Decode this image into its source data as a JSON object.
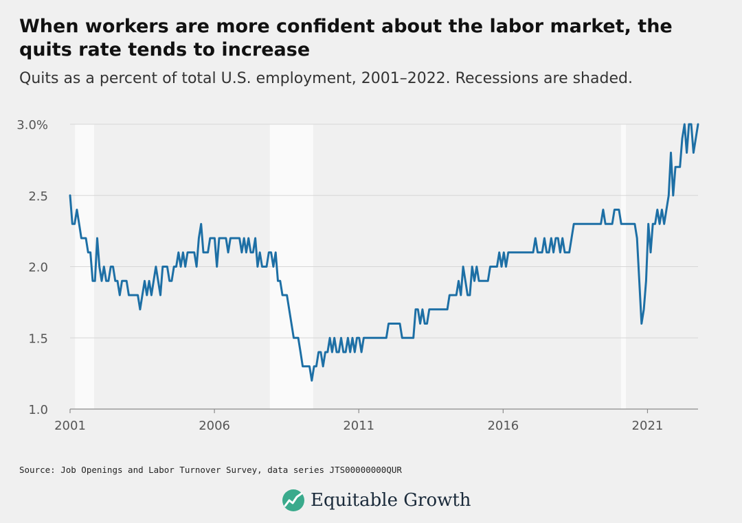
{
  "header": {
    "title": "When workers are more confident about the labor market, the quits rate tends to increase",
    "subtitle": "Quits as a percent of total U.S. employment, 2001–2022. Recessions are shaded."
  },
  "footer": {
    "source": "Source: Job Openings and Labor Turnover Survey, data series JTS00000000QUR",
    "brand": "Equitable Growth"
  },
  "colors": {
    "background": "#f0f0f0",
    "line": "#1d6fa5",
    "recession": "#fafafa",
    "grid": "#d6d6d6",
    "logo": "#3aaa8c"
  },
  "icons": {
    "logo": "equitable-growth-logo-icon"
  },
  "chart_data": {
    "type": "line",
    "title": "When workers are more confident about the labor market, the quits rate tends to increase",
    "subtitle": "Quits as a percent of total U.S. employment, 2001–2022. Recessions are shaded.",
    "xlabel": "",
    "ylabel": "",
    "xlim": [
      2001.0,
      2022.75
    ],
    "ylim": [
      1.0,
      3.0
    ],
    "x_ticks": [
      2001,
      2006,
      2011,
      2016,
      2021
    ],
    "x_tick_labels": [
      "2001",
      "2006",
      "2011",
      "2016",
      "2021"
    ],
    "y_ticks": [
      1.0,
      1.5,
      2.0,
      2.5,
      3.0
    ],
    "y_tick_labels": [
      "1.0",
      "1.5",
      "2.0",
      "2.5",
      "3.0%"
    ],
    "grid": "horizontal",
    "recessions": [
      {
        "start": 2001.17,
        "end": 2001.83
      },
      {
        "start": 2007.92,
        "end": 2009.42
      },
      {
        "start": 2020.08,
        "end": 2020.25
      }
    ],
    "series": [
      {
        "values": [
          2.5,
          2.3,
          2.3,
          2.4,
          2.3,
          2.2,
          2.2,
          2.2,
          2.1,
          2.1,
          1.9,
          1.9,
          2.2,
          2.0,
          1.9,
          2.0,
          1.9,
          1.9,
          2.0,
          2.0,
          1.9,
          1.9,
          1.8,
          1.9,
          1.9,
          1.9,
          1.8,
          1.8,
          1.8,
          1.8,
          1.8,
          1.7,
          1.8,
          1.9,
          1.8,
          1.9,
          1.8,
          1.9,
          2.0,
          1.9,
          1.8,
          2.0,
          2.0,
          2.0,
          1.9,
          1.9,
          2.0,
          2.0,
          2.1,
          2.0,
          2.1,
          2.0,
          2.1,
          2.1,
          2.1,
          2.1,
          2.0,
          2.2,
          2.3,
          2.1,
          2.1,
          2.1,
          2.2,
          2.2,
          2.2,
          2.0,
          2.2,
          2.2,
          2.2,
          2.2,
          2.1,
          2.2,
          2.2,
          2.2,
          2.2,
          2.2,
          2.1,
          2.2,
          2.1,
          2.2,
          2.1,
          2.1,
          2.2,
          2.0,
          2.1,
          2.0,
          2.0,
          2.0,
          2.1,
          2.1,
          2.0,
          2.1,
          1.9,
          1.9,
          1.8,
          1.8,
          1.8,
          1.7,
          1.6,
          1.5,
          1.5,
          1.5,
          1.4,
          1.3,
          1.3,
          1.3,
          1.3,
          1.2,
          1.3,
          1.3,
          1.4,
          1.4,
          1.3,
          1.4,
          1.4,
          1.5,
          1.4,
          1.5,
          1.4,
          1.4,
          1.5,
          1.4,
          1.4,
          1.5,
          1.4,
          1.5,
          1.4,
          1.5,
          1.5,
          1.4,
          1.5,
          1.5,
          1.5,
          1.5,
          1.5,
          1.5,
          1.5,
          1.5,
          1.5,
          1.5,
          1.5,
          1.6,
          1.6,
          1.6,
          1.6,
          1.6,
          1.6,
          1.5,
          1.5,
          1.5,
          1.5,
          1.5,
          1.5,
          1.7,
          1.7,
          1.6,
          1.7,
          1.6,
          1.6,
          1.7,
          1.7,
          1.7,
          1.7,
          1.7,
          1.7,
          1.7,
          1.7,
          1.7,
          1.8,
          1.8,
          1.8,
          1.8,
          1.9,
          1.8,
          2.0,
          1.9,
          1.8,
          1.8,
          2.0,
          1.9,
          2.0,
          1.9,
          1.9,
          1.9,
          1.9,
          1.9,
          2.0,
          2.0,
          2.0,
          2.0,
          2.1,
          2.0,
          2.1,
          2.0,
          2.1,
          2.1,
          2.1,
          2.1,
          2.1,
          2.1,
          2.1,
          2.1,
          2.1,
          2.1,
          2.1,
          2.1,
          2.2,
          2.1,
          2.1,
          2.1,
          2.2,
          2.1,
          2.1,
          2.2,
          2.1,
          2.2,
          2.2,
          2.1,
          2.2,
          2.1,
          2.1,
          2.1,
          2.2,
          2.3,
          2.3,
          2.3,
          2.3,
          2.3,
          2.3,
          2.3,
          2.3,
          2.3,
          2.3,
          2.3,
          2.3,
          2.3,
          2.4,
          2.3,
          2.3,
          2.3,
          2.3,
          2.4,
          2.4,
          2.4,
          2.3,
          2.3,
          2.3,
          2.3,
          2.3,
          2.3,
          2.3,
          2.2,
          1.9,
          1.6,
          1.7,
          1.9,
          2.3,
          2.1,
          2.3,
          2.3,
          2.4,
          2.3,
          2.4,
          2.3,
          2.4,
          2.5,
          2.8,
          2.5,
          2.7,
          2.7,
          2.7,
          2.9,
          3.0,
          2.8,
          3.0,
          3.0,
          2.8,
          2.9,
          3.0
        ]
      }
    ]
  }
}
